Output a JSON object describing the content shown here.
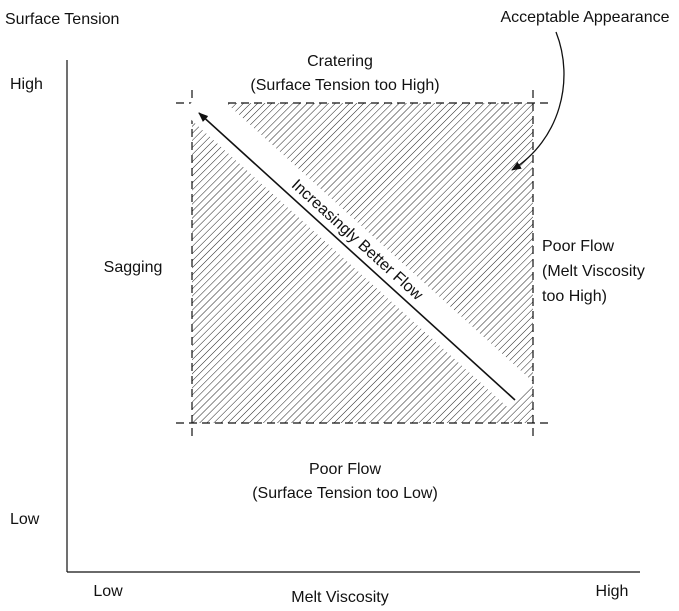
{
  "diagram": {
    "y_axis": {
      "title": "Surface Tension",
      "high": "High",
      "low": "Low"
    },
    "x_axis": {
      "title": "Melt Viscosity",
      "low": "Low",
      "high": "High"
    },
    "regions": {
      "top": [
        "Cratering",
        "(Surface Tension too High)"
      ],
      "left": [
        "Sagging"
      ],
      "right": [
        "Poor Flow",
        "(Melt Viscosity",
        "too High)"
      ],
      "bottom": [
        "Poor Flow",
        "(Surface Tension too Low)"
      ]
    },
    "callout": "Acceptable Appearance",
    "arrow_label": "Increasingly Better Flow"
  }
}
